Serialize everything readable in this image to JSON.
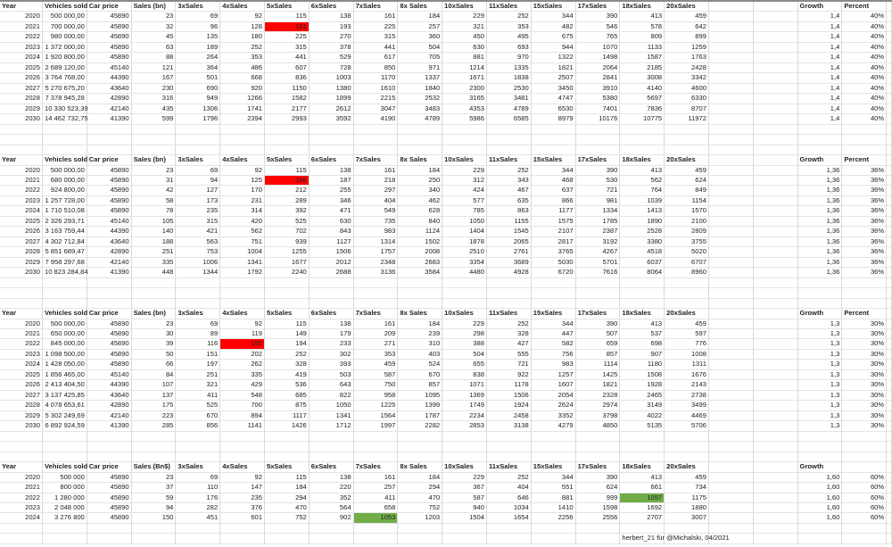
{
  "colors": {
    "red_highlight": "#ff0000",
    "green_highlight": "#70ad47",
    "gridline": "#dadada"
  },
  "blocks": [
    {
      "headers": [
        "Year",
        "Vehicles sold",
        "Car price",
        "Sales (bn)",
        "3xSales",
        "4xSales",
        "5xSales",
        "6xSales",
        "7xSales",
        "8x Sales",
        "10xSales",
        "11xSales",
        "15xSales",
        "17xSales",
        "18xSales",
        "20xSales",
        "",
        "",
        "Growth",
        "Percent"
      ],
      "rows": [
        [
          "2020",
          "500 000,00",
          "45890",
          "23",
          "69",
          "92",
          "115",
          "138",
          "161",
          "184",
          "229",
          "252",
          "344",
          "390",
          "413",
          "459",
          "1,4",
          "40%"
        ],
        [
          "2021",
          "700 000,00",
          "45890",
          "32",
          "96",
          "128",
          "161",
          "193",
          "225",
          "257",
          "321",
          "353",
          "482",
          "546",
          "578",
          "642",
          "1,4",
          "40%"
        ],
        [
          "2022",
          "980 000,00",
          "45890",
          "45",
          "135",
          "180",
          "225",
          "270",
          "315",
          "360",
          "450",
          "495",
          "675",
          "765",
          "809",
          "899",
          "1,4",
          "40%"
        ],
        [
          "2023",
          "1 372 000,00",
          "45890",
          "63",
          "189",
          "252",
          "315",
          "378",
          "441",
          "504",
          "630",
          "693",
          "944",
          "1070",
          "1133",
          "1259",
          "1,4",
          "40%"
        ],
        [
          "2024",
          "1 920 800,00",
          "45890",
          "88",
          "264",
          "353",
          "441",
          "529",
          "617",
          "705",
          "881",
          "970",
          "1322",
          "1498",
          "1587",
          "1763",
          "1,4",
          "40%"
        ],
        [
          "2025",
          "2 689 120,00",
          "45140",
          "121",
          "364",
          "486",
          "607",
          "728",
          "850",
          "971",
          "1214",
          "1335",
          "1821",
          "2064",
          "2185",
          "2428",
          "1,4",
          "40%"
        ],
        [
          "2026",
          "3 764 768,00",
          "44390",
          "167",
          "501",
          "668",
          "836",
          "1003",
          "1170",
          "1337",
          "1671",
          "1838",
          "2507",
          "2841",
          "3008",
          "3342",
          "1,4",
          "40%"
        ],
        [
          "2027",
          "5 270 675,20",
          "43640",
          "230",
          "690",
          "920",
          "1150",
          "1380",
          "1610",
          "1840",
          "2300",
          "2530",
          "3450",
          "3910",
          "4140",
          "4600",
          "1,4",
          "40%"
        ],
        [
          "2028",
          "7 378 945,28",
          "42890",
          "316",
          "949",
          "1266",
          "1582",
          "1899",
          "2215",
          "2532",
          "3165",
          "3481",
          "4747",
          "5380",
          "5697",
          "6330",
          "1,4",
          "40%"
        ],
        [
          "2029",
          "10 330 523,39",
          "42140",
          "435",
          "1306",
          "1741",
          "2177",
          "2612",
          "3047",
          "3483",
          "4353",
          "4789",
          "6530",
          "7401",
          "7836",
          "8707",
          "1,4",
          "40%"
        ],
        [
          "2030",
          "14 462 732,75",
          "41390",
          "599",
          "1796",
          "2394",
          "2993",
          "3592",
          "4190",
          "4789",
          "5986",
          "6585",
          "8979",
          "10176",
          "10775",
          "11972",
          "1,4",
          "40%"
        ]
      ],
      "highlights": [
        {
          "row": 1,
          "col": 6,
          "color": "red"
        }
      ]
    },
    {
      "headers": [
        "Year",
        "Vehicles sold",
        "Car price",
        "Sales (bn)",
        "3xSales",
        "4xSales",
        "5xSales",
        "6xSales",
        "7xSales",
        "8x Sales",
        "10xSales",
        "11xSales",
        "15xSales",
        "17xSales",
        "18xSales",
        "20xSales",
        "",
        "",
        "Growth",
        "Percent"
      ],
      "rows": [
        [
          "2020",
          "500 000,00",
          "45890",
          "23",
          "69",
          "92",
          "115",
          "138",
          "161",
          "184",
          "229",
          "252",
          "344",
          "390",
          "413",
          "459",
          "1,36",
          "36%"
        ],
        [
          "2021",
          "680 000,00",
          "45890",
          "31",
          "94",
          "125",
          "156",
          "187",
          "218",
          "250",
          "312",
          "343",
          "468",
          "530",
          "562",
          "624",
          "1,36",
          "36%"
        ],
        [
          "2022",
          "924 800,00",
          "45890",
          "42",
          "127",
          "170",
          "212",
          "255",
          "297",
          "340",
          "424",
          "467",
          "637",
          "721",
          "764",
          "849",
          "1,36",
          "36%"
        ],
        [
          "2023",
          "1 257 728,00",
          "45890",
          "58",
          "173",
          "231",
          "289",
          "346",
          "404",
          "462",
          "577",
          "635",
          "866",
          "981",
          "1039",
          "1154",
          "1,36",
          "36%"
        ],
        [
          "2024",
          "1 710 510,08",
          "45890",
          "78",
          "235",
          "314",
          "392",
          "471",
          "549",
          "628",
          "785",
          "863",
          "1177",
          "1334",
          "1413",
          "1570",
          "1,36",
          "36%"
        ],
        [
          "2025",
          "2 326 293,71",
          "45140",
          "105",
          "315",
          "420",
          "525",
          "630",
          "735",
          "840",
          "1050",
          "1155",
          "1575",
          "1785",
          "1890",
          "2100",
          "1,36",
          "36%"
        ],
        [
          "2026",
          "3 163 759,44",
          "44390",
          "140",
          "421",
          "562",
          "702",
          "843",
          "983",
          "1124",
          "1404",
          "1545",
          "2107",
          "2387",
          "2528",
          "2809",
          "1,36",
          "36%"
        ],
        [
          "2027",
          "4 302 712,84",
          "43640",
          "188",
          "563",
          "751",
          "939",
          "1127",
          "1314",
          "1502",
          "1878",
          "2065",
          "2817",
          "3192",
          "3380",
          "3755",
          "1,36",
          "36%"
        ],
        [
          "2028",
          "5 851 689,47",
          "42890",
          "251",
          "753",
          "1004",
          "1255",
          "1506",
          "1757",
          "2008",
          "2510",
          "2761",
          "3765",
          "4267",
          "4518",
          "5020",
          "1,36",
          "36%"
        ],
        [
          "2029",
          "7 958 297,68",
          "42140",
          "335",
          "1006",
          "1341",
          "1677",
          "2012",
          "2348",
          "2683",
          "3354",
          "3689",
          "5030",
          "5701",
          "6037",
          "6707",
          "1,36",
          "36%"
        ],
        [
          "2030",
          "10 823 284,84",
          "41390",
          "448",
          "1344",
          "1792",
          "2240",
          "2688",
          "3136",
          "3584",
          "4480",
          "4928",
          "6720",
          "7616",
          "8064",
          "8960",
          "1,36",
          "36%"
        ]
      ],
      "highlights": [
        {
          "row": 1,
          "col": 6,
          "color": "red"
        }
      ]
    },
    {
      "headers": [
        "Year",
        "Vehicles sold",
        "Car price",
        "Sales (bn)",
        "3xSales",
        "4xSales",
        "5xSales",
        "6xSales",
        "7xSales",
        "8x Sales",
        "10xSales",
        "11xSales",
        "15xSales",
        "17xSales",
        "18xSales",
        "20xSales",
        "",
        "",
        "Growth",
        "Percent"
      ],
      "rows": [
        [
          "2020",
          "500 000,00",
          "45890",
          "23",
          "69",
          "92",
          "115",
          "138",
          "161",
          "184",
          "229",
          "252",
          "344",
          "390",
          "413",
          "459",
          "1,3",
          "30%"
        ],
        [
          "2021",
          "650 000,00",
          "45890",
          "30",
          "89",
          "119",
          "149",
          "179",
          "209",
          "239",
          "298",
          "328",
          "447",
          "507",
          "537",
          "597",
          "1,3",
          "30%"
        ],
        [
          "2022",
          "845 000,00",
          "45890",
          "39",
          "116",
          "155",
          "194",
          "233",
          "271",
          "310",
          "388",
          "427",
          "582",
          "659",
          "698",
          "776",
          "1,3",
          "30%"
        ],
        [
          "2023",
          "1 098 500,00",
          "45890",
          "50",
          "151",
          "202",
          "252",
          "302",
          "353",
          "403",
          "504",
          "555",
          "756",
          "857",
          "907",
          "1008",
          "1,3",
          "30%"
        ],
        [
          "2024",
          "1 428 050,00",
          "45890",
          "66",
          "197",
          "262",
          "328",
          "393",
          "459",
          "524",
          "655",
          "721",
          "983",
          "1114",
          "1180",
          "1311",
          "1,3",
          "30%"
        ],
        [
          "2025",
          "1 856 465,00",
          "45140",
          "84",
          "251",
          "335",
          "419",
          "503",
          "587",
          "670",
          "838",
          "922",
          "1257",
          "1425",
          "1508",
          "1676",
          "1,3",
          "30%"
        ],
        [
          "2026",
          "2 413 404,50",
          "44390",
          "107",
          "321",
          "429",
          "536",
          "643",
          "750",
          "857",
          "1071",
          "1178",
          "1607",
          "1821",
          "1928",
          "2143",
          "1,3",
          "30%"
        ],
        [
          "2027",
          "3 137 425,85",
          "43640",
          "137",
          "411",
          "548",
          "685",
          "822",
          "958",
          "1095",
          "1369",
          "1506",
          "2054",
          "2328",
          "2465",
          "2738",
          "1,3",
          "30%"
        ],
        [
          "2028",
          "4 078 653,61",
          "42890",
          "175",
          "525",
          "700",
          "875",
          "1050",
          "1225",
          "1399",
          "1749",
          "1924",
          "2624",
          "2974",
          "3149",
          "3499",
          "1,3",
          "30%"
        ],
        [
          "2029",
          "5 302 249,69",
          "42140",
          "223",
          "670",
          "894",
          "1117",
          "1341",
          "1564",
          "1787",
          "2234",
          "2458",
          "3352",
          "3798",
          "4022",
          "4469",
          "1,3",
          "30%"
        ],
        [
          "2030",
          "6 892 924,59",
          "41390",
          "285",
          "856",
          "1141",
          "1426",
          "1712",
          "1997",
          "2282",
          "2853",
          "3138",
          "4279",
          "4850",
          "5135",
          "5706",
          "1,3",
          "30%"
        ]
      ],
      "highlights": [
        {
          "row": 2,
          "col": 5,
          "color": "red"
        }
      ]
    },
    {
      "headers": [
        "Year",
        "Vehicles sold",
        "Car price",
        "Sales (Bn$)",
        "3xSales",
        "4xSales",
        "5xSales",
        "6xSales",
        "7xSales",
        "8x Sales",
        "10xSales",
        "11xSales",
        "15xSales",
        "17xSales",
        "18xSales",
        "20xSales",
        "",
        "",
        "Growth",
        ""
      ],
      "rows": [
        [
          "2020",
          "500 000",
          "45890",
          "23",
          "69",
          "92",
          "115",
          "138",
          "161",
          "184",
          "229",
          "252",
          "344",
          "390",
          "413",
          "459",
          "1,60",
          "60%"
        ],
        [
          "2021",
          "800 000",
          "45890",
          "37",
          "110",
          "147",
          "184",
          "220",
          "257",
          "294",
          "367",
          "404",
          "551",
          "624",
          "661",
          "734",
          "1,60",
          "60%"
        ],
        [
          "2022",
          "1 280 000",
          "45890",
          "59",
          "176",
          "235",
          "294",
          "352",
          "411",
          "470",
          "587",
          "646",
          "881",
          "999",
          "1057",
          "1175",
          "1,60",
          "60%"
        ],
        [
          "2023",
          "2 048 000",
          "45890",
          "94",
          "282",
          "376",
          "470",
          "564",
          "658",
          "752",
          "940",
          "1034",
          "1410",
          "1598",
          "1692",
          "1880",
          "1,60",
          "60%"
        ],
        [
          "2024",
          "3 276 800",
          "45890",
          "150",
          "451",
          "601",
          "752",
          "902",
          "1053",
          "1203",
          "1504",
          "1654",
          "2256",
          "2556",
          "2707",
          "3007",
          "1,60",
          "60%"
        ]
      ],
      "highlights": [
        {
          "row": 4,
          "col": 8,
          "color": "green"
        },
        {
          "row": 2,
          "col": 14,
          "color": "green"
        }
      ]
    }
  ],
  "credit": "herbert_21 für @Michalski, 04/2021"
}
